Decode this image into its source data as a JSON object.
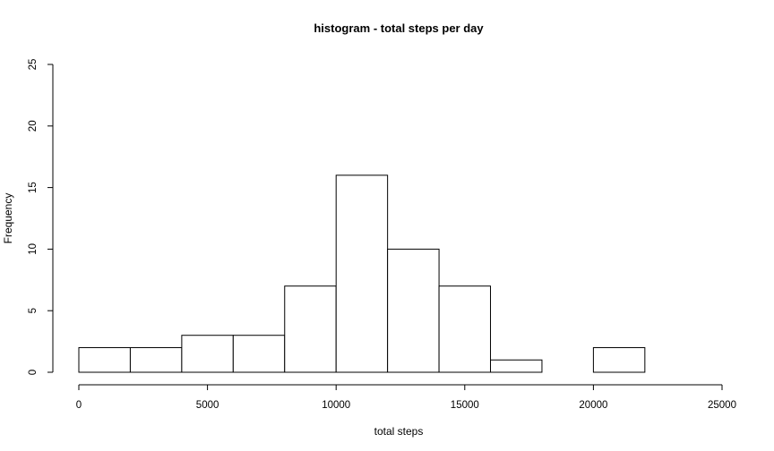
{
  "chart_data": {
    "type": "bar",
    "title": "histogram - total steps per day",
    "xlabel": "total steps",
    "ylabel": "Frequency",
    "bins": [
      {
        "start": 0,
        "end": 2000,
        "count": 2
      },
      {
        "start": 2000,
        "end": 4000,
        "count": 2
      },
      {
        "start": 4000,
        "end": 6000,
        "count": 3
      },
      {
        "start": 6000,
        "end": 8000,
        "count": 3
      },
      {
        "start": 8000,
        "end": 10000,
        "count": 7
      },
      {
        "start": 10000,
        "end": 12000,
        "count": 16
      },
      {
        "start": 12000,
        "end": 14000,
        "count": 10
      },
      {
        "start": 14000,
        "end": 16000,
        "count": 7
      },
      {
        "start": 16000,
        "end": 18000,
        "count": 1
      },
      {
        "start": 18000,
        "end": 20000,
        "count": 0
      },
      {
        "start": 20000,
        "end": 22000,
        "count": 2
      }
    ],
    "xlim": [
      0,
      25000
    ],
    "ylim": [
      0,
      25
    ],
    "x_ticks": [
      "0",
      "5000",
      "10000",
      "15000",
      "20000",
      "25000"
    ],
    "y_ticks": [
      "0",
      "5",
      "10",
      "15",
      "20",
      "25"
    ],
    "grid": false,
    "legend": "none"
  }
}
